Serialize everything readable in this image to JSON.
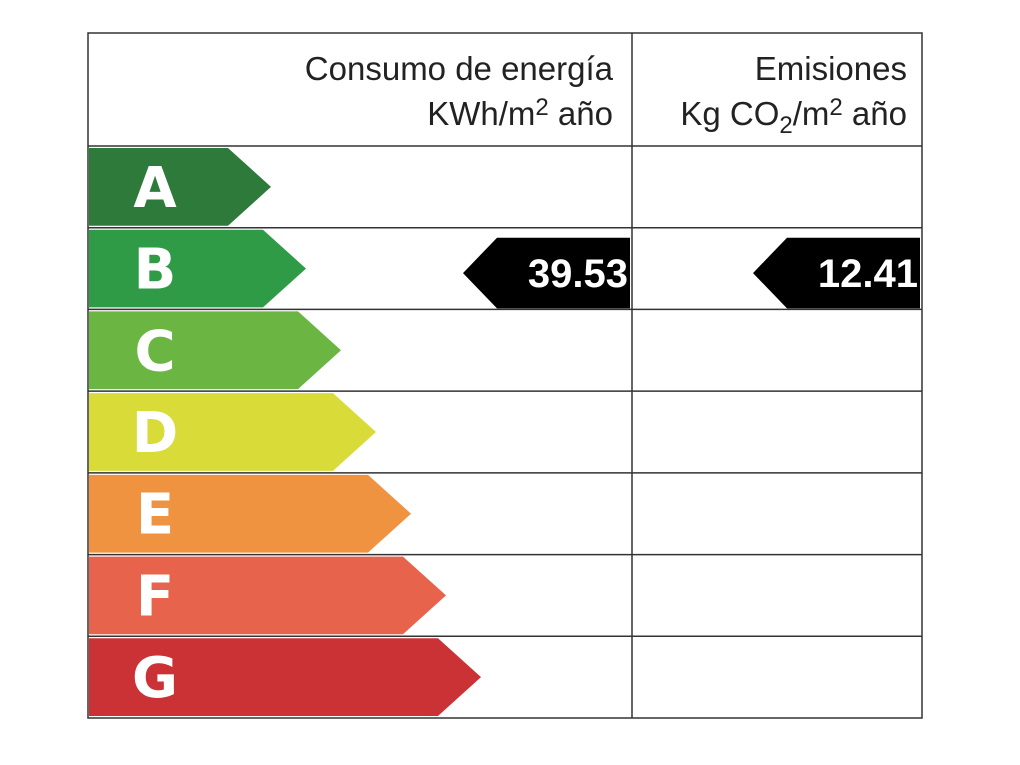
{
  "header": {
    "energy": {
      "title": "Consumo de energía",
      "unit": [
        "KWh/m",
        "2",
        " año"
      ]
    },
    "emissions": {
      "title": "Emisiones",
      "unit": [
        "Kg CO",
        "2",
        "/m",
        "2",
        " año"
      ]
    }
  },
  "ratings": [
    {
      "letter": "A",
      "color": "#2d7a3b"
    },
    {
      "letter": "B",
      "color": "#2f9b46"
    },
    {
      "letter": "C",
      "color": "#6bb543"
    },
    {
      "letter": "D",
      "color": "#d9db39"
    },
    {
      "letter": "E",
      "color": "#ef9341"
    },
    {
      "letter": "F",
      "color": "#e8634c"
    },
    {
      "letter": "G",
      "color": "#cb3235"
    }
  ],
  "energy": {
    "rating": "B",
    "value": 39.53
  },
  "emissions": {
    "rating": "B",
    "value": 12.41
  }
}
